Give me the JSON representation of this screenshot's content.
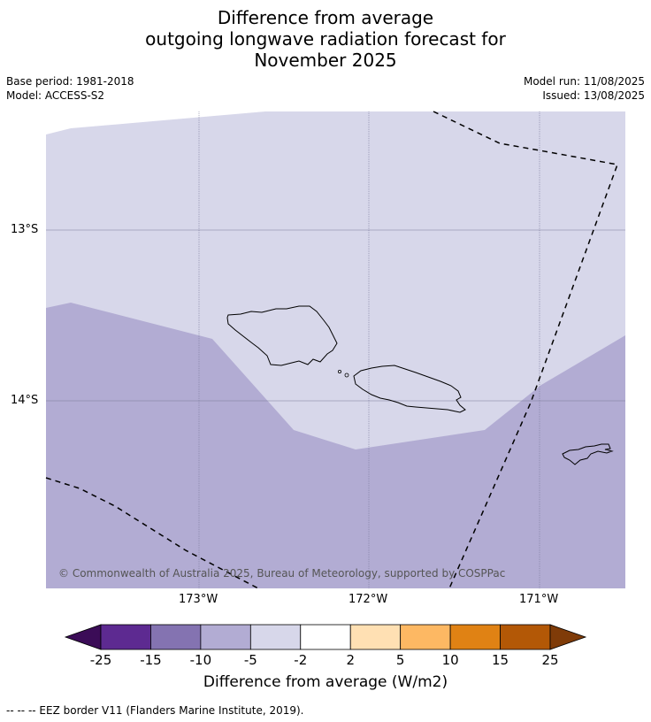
{
  "title": {
    "line1": "Difference from average",
    "line2": "outgoing longwave radiation forecast for",
    "line3": "November 2025"
  },
  "meta": {
    "base_period": "Base period: 1981-2018",
    "model": "Model: ACCESS-S2",
    "model_run": "Model run: 11/08/2025",
    "issued": "Issued: 13/08/2025"
  },
  "map": {
    "lat_labels": [
      "13°S",
      "14°S"
    ],
    "lon_labels": [
      "173°W",
      "172°W",
      "171°W"
    ],
    "copyright": "© Commonwealth of Australia 2025, Bureau of Meteorology, supported by COSPPac",
    "colors": {
      "band_minus5_minus2": "#d7d7ea",
      "band_minus10_minus5": "#b2acd3"
    }
  },
  "colorbar": {
    "ticks": [
      "-25",
      "-15",
      "-10",
      "-5",
      "-2",
      "2",
      "5",
      "10",
      "15",
      "25"
    ],
    "colors": [
      "#3b0c57",
      "#5d2a91",
      "#8473b1",
      "#b2acd3",
      "#d7d7ea",
      "#ffffff",
      "#ffe0b3",
      "#fdb863",
      "#e08214",
      "#b35806",
      "#7f3b08"
    ],
    "label": "Difference from average (W/m2)"
  },
  "footnote": "--  --  -- EEZ border V11 (Flanders Marine Institute, 2019)."
}
